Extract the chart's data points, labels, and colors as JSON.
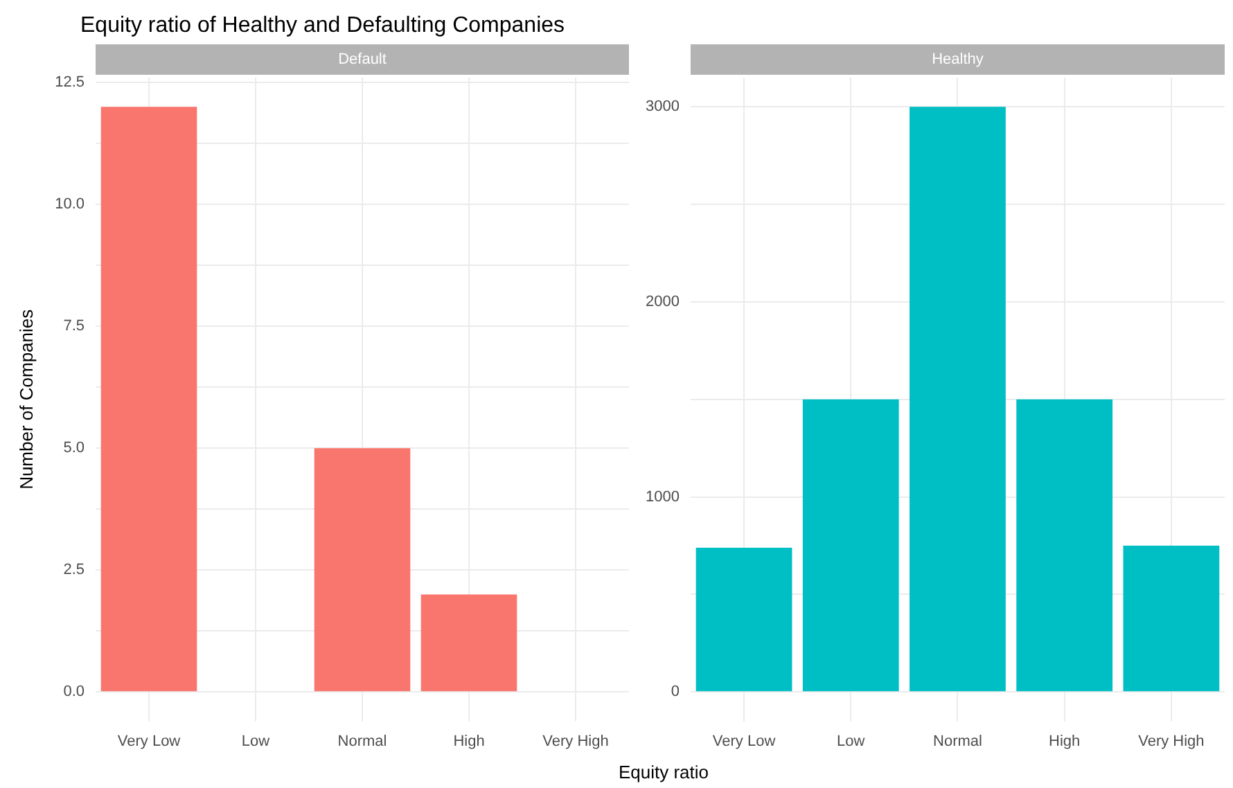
{
  "chart_data": [
    {
      "type": "bar",
      "title": "Equity ratio of Healthy and Defaulting Companies",
      "subtitle": "Default",
      "ylabel": "Number of Companies",
      "xlabel": "Equity ratio",
      "categories": [
        "Very Low",
        "Low",
        "Normal",
        "High",
        "Very High"
      ],
      "values": [
        12,
        0,
        5,
        2,
        0
      ],
      "color": "#f8766d",
      "ylim": [
        -0.6,
        12.6
      ],
      "yticks": [
        {
          "value": 0,
          "label": "0.0"
        },
        {
          "value": 1.25,
          "label": null
        },
        {
          "value": 2.5,
          "label": "2.5"
        },
        {
          "value": 3.75,
          "label": null
        },
        {
          "value": 5,
          "label": "5.0"
        },
        {
          "value": 6.25,
          "label": null
        },
        {
          "value": 7.5,
          "label": "7.5"
        },
        {
          "value": 8.75,
          "label": null
        },
        {
          "value": 10,
          "label": "10.0"
        },
        {
          "value": 11.25,
          "label": null
        },
        {
          "value": 12.5,
          "label": "12.5"
        }
      ],
      "grid": true
    },
    {
      "type": "bar",
      "subtitle": "Healthy",
      "categories": [
        "Very Low",
        "Low",
        "Normal",
        "High",
        "Very High"
      ],
      "values": [
        740,
        1500,
        3000,
        1500,
        750
      ],
      "color": "#00bfc4",
      "ylim": [
        -150,
        3150
      ],
      "yticks": [
        0,
        {
          "value": 500,
          "label": null
        },
        1000,
        {
          "value": 1500,
          "label": null
        },
        2000,
        {
          "value": 2500,
          "label": null
        },
        3000
      ],
      "grid": true
    }
  ]
}
